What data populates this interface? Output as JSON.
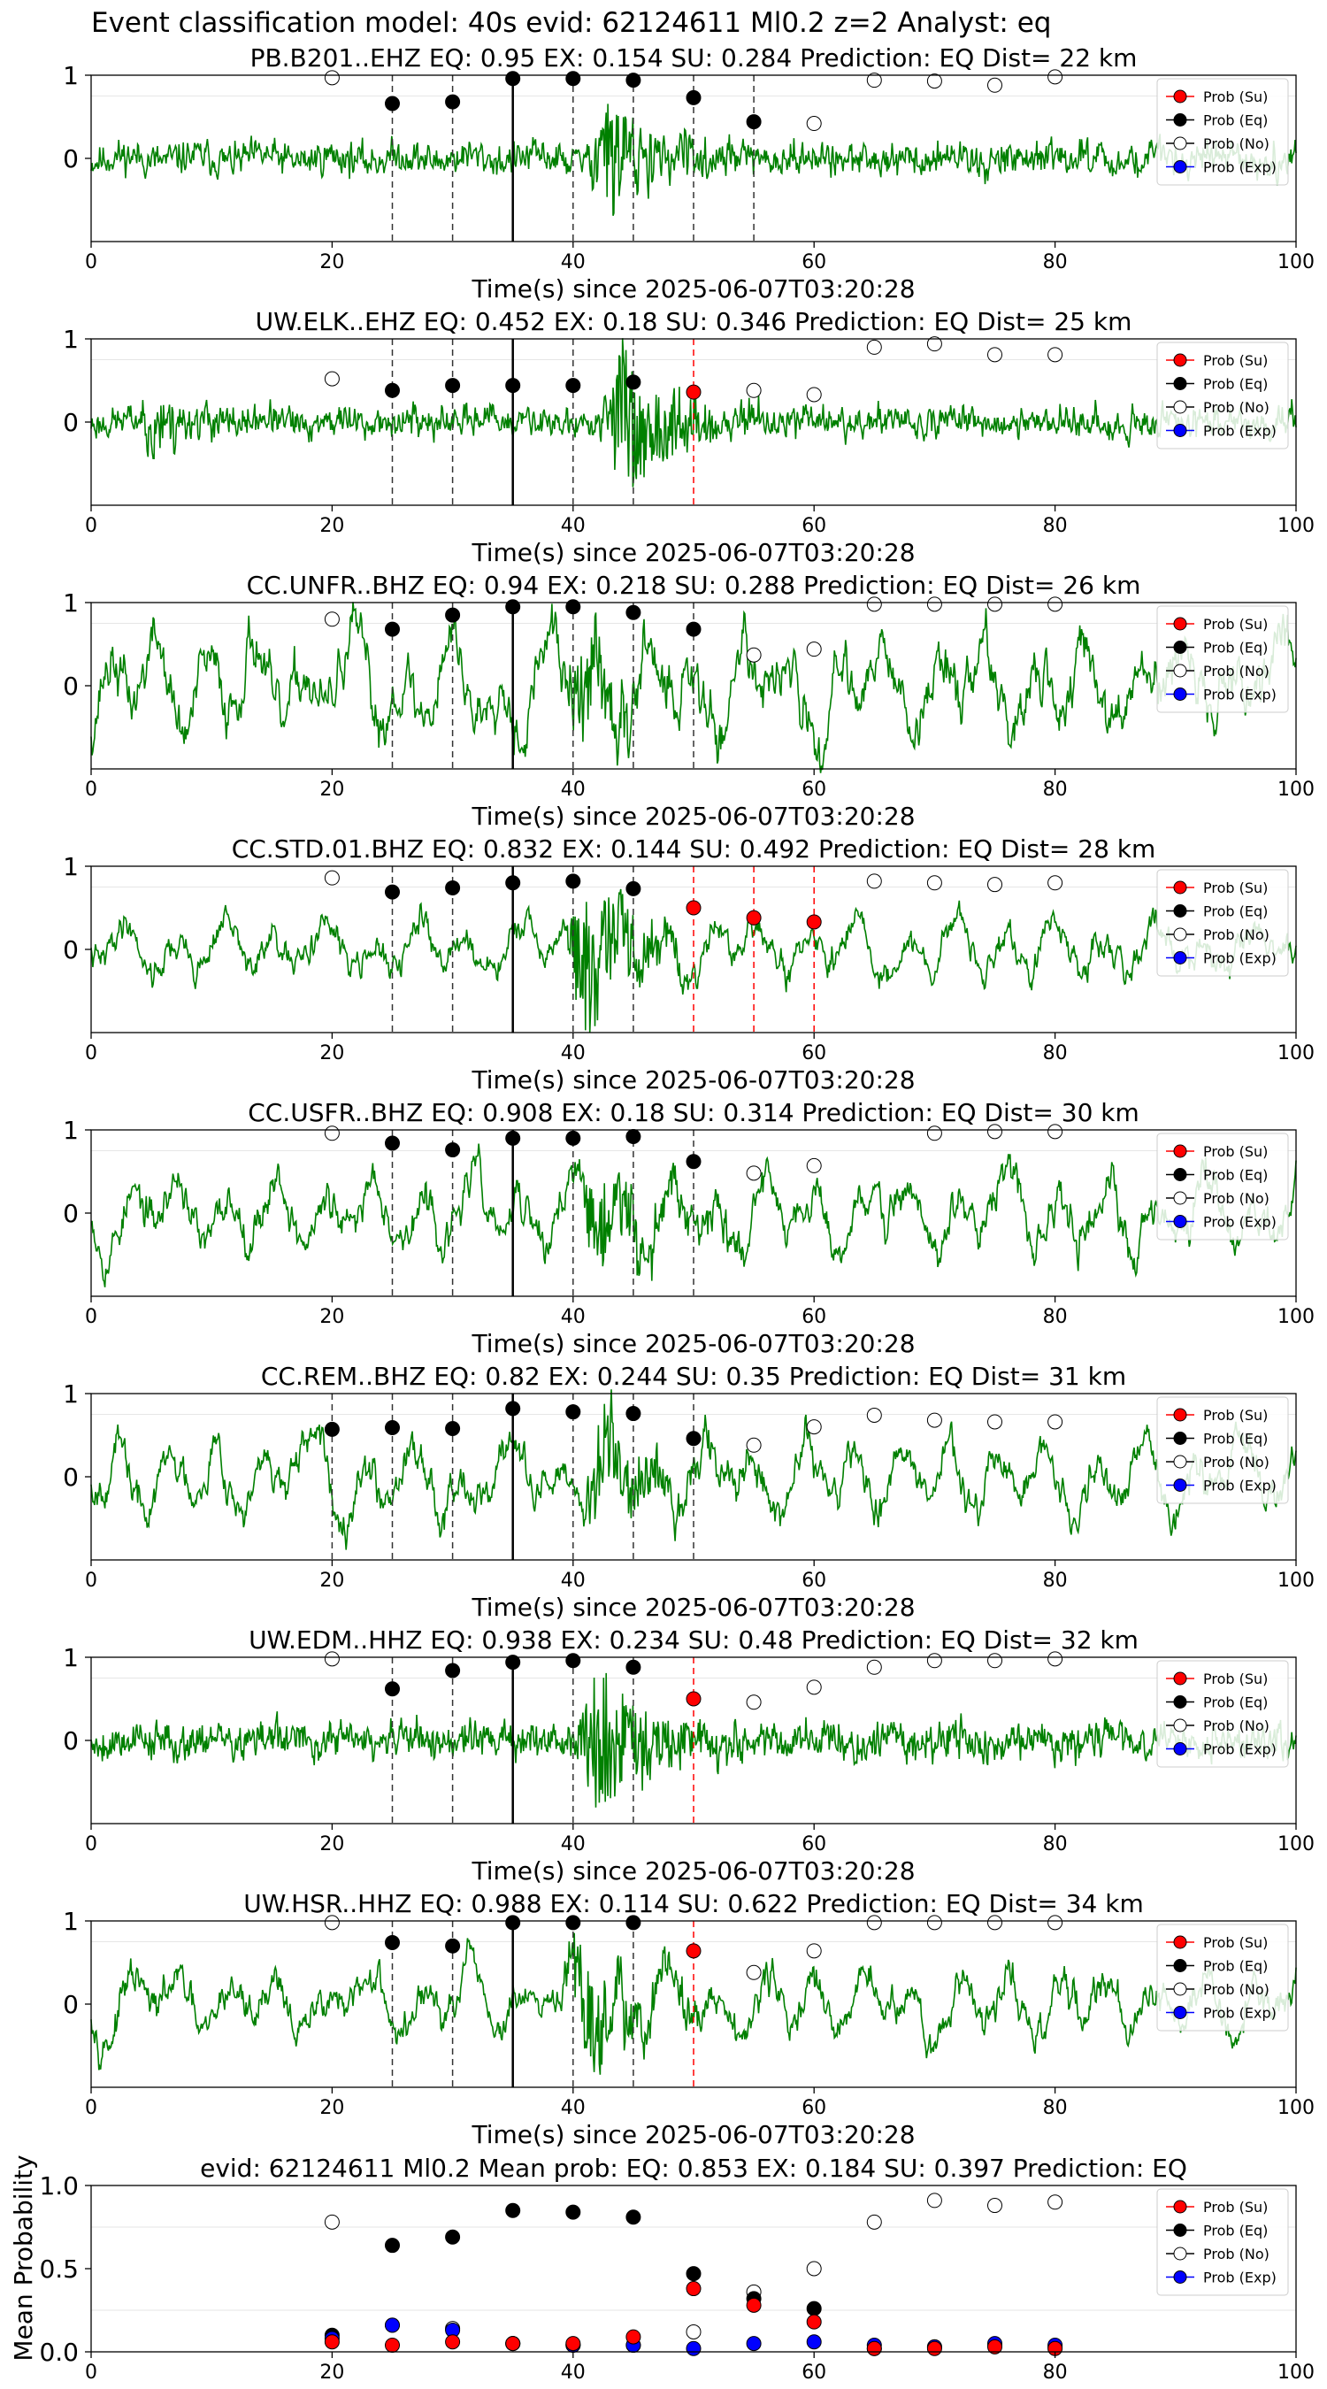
{
  "title": "Event classification model: 40s evid: 62124611 Ml0.2 z=2 Analyst: eq",
  "legend": [
    "Prob (Su)",
    "Prob (Eq)",
    "Prob (No)",
    "Prob (Exp)"
  ],
  "colors": {
    "waveform": "#008000",
    "su": "#ff0000",
    "eq": "#000000",
    "no": "#ffffff",
    "exp": "#0000ff",
    "line_eq": "#000000",
    "line_su": "#ff0000"
  },
  "chart_data": [
    {
      "type": "line",
      "title": "PB.B201..EHZ   EQ: 0.95  EX: 0.154  SU: 0.284   Prediction: EQ    Dist= 22 km",
      "xlabel": "Time(s) since 2025-06-07T03:20:28",
      "xlim": [
        0,
        100
      ],
      "ylim": [
        -1,
        1
      ],
      "xticks": [
        "0",
        "20",
        "40",
        "60",
        "80",
        "100"
      ],
      "yticks": [
        "0",
        "1"
      ],
      "points": [
        {
          "x": 20,
          "y": 0.97,
          "cls": "no"
        },
        {
          "x": 25,
          "y": 0.66,
          "cls": "eq"
        },
        {
          "x": 30,
          "y": 0.68,
          "cls": "eq"
        },
        {
          "x": 35,
          "y": 0.96,
          "cls": "eq"
        },
        {
          "x": 40,
          "y": 0.96,
          "cls": "eq"
        },
        {
          "x": 45,
          "y": 0.94,
          "cls": "eq"
        },
        {
          "x": 50,
          "y": 0.73,
          "cls": "eq"
        },
        {
          "x": 55,
          "y": 0.44,
          "cls": "eq"
        },
        {
          "x": 60,
          "y": 0.42,
          "cls": "no"
        },
        {
          "x": 65,
          "y": 0.94,
          "cls": "no"
        },
        {
          "x": 70,
          "y": 0.93,
          "cls": "no"
        },
        {
          "x": 75,
          "y": 0.88,
          "cls": "no"
        },
        {
          "x": 80,
          "y": 0.98,
          "cls": "no"
        }
      ],
      "vlines": [
        {
          "x": 25,
          "c": "eq"
        },
        {
          "x": 30,
          "c": "eq"
        },
        {
          "x": 40,
          "c": "eq"
        },
        {
          "x": 45,
          "c": "eq"
        },
        {
          "x": 50,
          "c": "eq"
        },
        {
          "x": 55,
          "c": "eq"
        }
      ],
      "waveform": {
        "style": "noisy",
        "amp": 0.22,
        "event_t": 43,
        "event_amp": 0.7,
        "seed": 11
      }
    },
    {
      "type": "line",
      "title": "UW.ELK..EHZ   EQ: 0.452  EX: 0.18  SU: 0.346   Prediction: EQ    Dist= 25 km",
      "xlabel": "Time(s) since 2025-06-07T03:20:28",
      "xlim": [
        0,
        100
      ],
      "ylim": [
        -1,
        1
      ],
      "xticks": [
        "0",
        "20",
        "40",
        "60",
        "80",
        "100"
      ],
      "yticks": [
        "0",
        "1"
      ],
      "points": [
        {
          "x": 20,
          "y": 0.52,
          "cls": "no"
        },
        {
          "x": 25,
          "y": 0.38,
          "cls": "eq"
        },
        {
          "x": 30,
          "y": 0.44,
          "cls": "eq"
        },
        {
          "x": 35,
          "y": 0.44,
          "cls": "eq"
        },
        {
          "x": 40,
          "y": 0.44,
          "cls": "eq"
        },
        {
          "x": 45,
          "y": 0.48,
          "cls": "eq"
        },
        {
          "x": 50,
          "y": 0.36,
          "cls": "su"
        },
        {
          "x": 55,
          "y": 0.38,
          "cls": "no"
        },
        {
          "x": 60,
          "y": 0.33,
          "cls": "no"
        },
        {
          "x": 65,
          "y": 0.9,
          "cls": "no"
        },
        {
          "x": 70,
          "y": 0.94,
          "cls": "no"
        },
        {
          "x": 75,
          "y": 0.81,
          "cls": "no"
        },
        {
          "x": 80,
          "y": 0.81,
          "cls": "no"
        }
      ],
      "vlines": [
        {
          "x": 25,
          "c": "eq"
        },
        {
          "x": 30,
          "c": "eq"
        },
        {
          "x": 40,
          "c": "eq"
        },
        {
          "x": 45,
          "c": "eq"
        },
        {
          "x": 50,
          "c": "su"
        }
      ],
      "waveform": {
        "style": "noisy",
        "amp": 0.2,
        "event_t": 44,
        "event_amp": 0.95,
        "seed": 23,
        "early_t": 5,
        "early_amp": 0.45
      }
    },
    {
      "type": "line",
      "title": "CC.UNFR..BHZ   EQ: 0.94  EX: 0.218  SU: 0.288   Prediction: EQ    Dist= 26 km",
      "xlabel": "Time(s) since 2025-06-07T03:20:28",
      "xlim": [
        0,
        100
      ],
      "ylim": [
        -1,
        1
      ],
      "xticks": [
        "0",
        "20",
        "40",
        "60",
        "80",
        "100"
      ],
      "yticks": [
        "0",
        "1"
      ],
      "points": [
        {
          "x": 20,
          "y": 0.8,
          "cls": "no"
        },
        {
          "x": 25,
          "y": 0.68,
          "cls": "eq"
        },
        {
          "x": 30,
          "y": 0.85,
          "cls": "eq"
        },
        {
          "x": 35,
          "y": 0.95,
          "cls": "eq"
        },
        {
          "x": 40,
          "y": 0.95,
          "cls": "eq"
        },
        {
          "x": 45,
          "y": 0.88,
          "cls": "eq"
        },
        {
          "x": 50,
          "y": 0.68,
          "cls": "eq"
        },
        {
          "x": 55,
          "y": 0.37,
          "cls": "no"
        },
        {
          "x": 60,
          "y": 0.44,
          "cls": "no"
        },
        {
          "x": 65,
          "y": 0.98,
          "cls": "no"
        },
        {
          "x": 70,
          "y": 0.98,
          "cls": "no"
        },
        {
          "x": 75,
          "y": 0.98,
          "cls": "no"
        },
        {
          "x": 80,
          "y": 0.98,
          "cls": "no"
        }
      ],
      "vlines": [
        {
          "x": 25,
          "c": "eq"
        },
        {
          "x": 30,
          "c": "eq"
        },
        {
          "x": 40,
          "c": "eq"
        },
        {
          "x": 45,
          "c": "eq"
        },
        {
          "x": 50,
          "c": "eq"
        }
      ],
      "waveform": {
        "style": "wavy",
        "amp": 0.45,
        "event_t": 41,
        "event_amp": 0.6,
        "seed": 37
      }
    },
    {
      "type": "line",
      "title": "CC.STD.01.BHZ   EQ: 0.832  EX: 0.144  SU: 0.492   Prediction: EQ    Dist= 28 km",
      "xlabel": "Time(s) since 2025-06-07T03:20:28",
      "xlim": [
        0,
        100
      ],
      "ylim": [
        -1,
        1
      ],
      "xticks": [
        "0",
        "20",
        "40",
        "60",
        "80",
        "100"
      ],
      "yticks": [
        "0",
        "1"
      ],
      "points": [
        {
          "x": 20,
          "y": 0.86,
          "cls": "no"
        },
        {
          "x": 25,
          "y": 0.69,
          "cls": "eq"
        },
        {
          "x": 30,
          "y": 0.74,
          "cls": "eq"
        },
        {
          "x": 35,
          "y": 0.8,
          "cls": "eq"
        },
        {
          "x": 40,
          "y": 0.82,
          "cls": "eq"
        },
        {
          "x": 45,
          "y": 0.73,
          "cls": "eq"
        },
        {
          "x": 50,
          "y": 0.5,
          "cls": "su"
        },
        {
          "x": 55,
          "y": 0.38,
          "cls": "su"
        },
        {
          "x": 60,
          "y": 0.33,
          "cls": "su"
        },
        {
          "x": 65,
          "y": 0.82,
          "cls": "no"
        },
        {
          "x": 70,
          "y": 0.8,
          "cls": "no"
        },
        {
          "x": 75,
          "y": 0.78,
          "cls": "no"
        },
        {
          "x": 80,
          "y": 0.8,
          "cls": "no"
        }
      ],
      "vlines": [
        {
          "x": 25,
          "c": "eq"
        },
        {
          "x": 30,
          "c": "eq"
        },
        {
          "x": 40,
          "c": "eq"
        },
        {
          "x": 45,
          "c": "eq"
        },
        {
          "x": 50,
          "c": "su"
        },
        {
          "x": 55,
          "c": "su"
        },
        {
          "x": 60,
          "c": "su"
        }
      ],
      "waveform": {
        "style": "wavy",
        "amp": 0.25,
        "event_t": 41,
        "event_amp": 0.8,
        "seed": 41
      }
    },
    {
      "type": "line",
      "title": "CC.USFR..BHZ   EQ: 0.908  EX: 0.18  SU: 0.314   Prediction: EQ    Dist= 30 km",
      "xlabel": "Time(s) since 2025-06-07T03:20:28",
      "xlim": [
        0,
        100
      ],
      "ylim": [
        -1,
        1
      ],
      "xticks": [
        "0",
        "20",
        "40",
        "60",
        "80",
        "100"
      ],
      "yticks": [
        "0",
        "1"
      ],
      "points": [
        {
          "x": 20,
          "y": 0.96,
          "cls": "no"
        },
        {
          "x": 25,
          "y": 0.84,
          "cls": "eq"
        },
        {
          "x": 30,
          "y": 0.76,
          "cls": "eq"
        },
        {
          "x": 35,
          "y": 0.9,
          "cls": "eq"
        },
        {
          "x": 40,
          "y": 0.9,
          "cls": "eq"
        },
        {
          "x": 45,
          "y": 0.92,
          "cls": "eq"
        },
        {
          "x": 50,
          "y": 0.62,
          "cls": "eq"
        },
        {
          "x": 55,
          "y": 0.48,
          "cls": "no"
        },
        {
          "x": 60,
          "y": 0.57,
          "cls": "no"
        },
        {
          "x": 70,
          "y": 0.96,
          "cls": "no"
        },
        {
          "x": 75,
          "y": 0.98,
          "cls": "no"
        },
        {
          "x": 80,
          "y": 0.98,
          "cls": "no"
        }
      ],
      "vlines": [
        {
          "x": 25,
          "c": "eq"
        },
        {
          "x": 30,
          "c": "eq"
        },
        {
          "x": 40,
          "c": "eq"
        },
        {
          "x": 45,
          "c": "eq"
        },
        {
          "x": 50,
          "c": "eq"
        }
      ],
      "waveform": {
        "style": "wavy",
        "amp": 0.33,
        "event_t": 42,
        "event_amp": 0.6,
        "seed": 53
      }
    },
    {
      "type": "line",
      "title": "CC.REM..BHZ   EQ: 0.82  EX: 0.244  SU: 0.35   Prediction: EQ    Dist= 31 km",
      "xlabel": "Time(s) since 2025-06-07T03:20:28",
      "xlim": [
        0,
        100
      ],
      "ylim": [
        -1,
        1
      ],
      "xticks": [
        "0",
        "20",
        "40",
        "60",
        "80",
        "100"
      ],
      "yticks": [
        "0",
        "1"
      ],
      "points": [
        {
          "x": 20,
          "y": 0.57,
          "cls": "eq"
        },
        {
          "x": 25,
          "y": 0.59,
          "cls": "eq"
        },
        {
          "x": 30,
          "y": 0.58,
          "cls": "eq"
        },
        {
          "x": 35,
          "y": 0.82,
          "cls": "eq"
        },
        {
          "x": 40,
          "y": 0.78,
          "cls": "eq"
        },
        {
          "x": 45,
          "y": 0.76,
          "cls": "eq"
        },
        {
          "x": 50,
          "y": 0.46,
          "cls": "eq"
        },
        {
          "x": 55,
          "y": 0.38,
          "cls": "no"
        },
        {
          "x": 60,
          "y": 0.6,
          "cls": "no"
        },
        {
          "x": 65,
          "y": 0.74,
          "cls": "no"
        },
        {
          "x": 70,
          "y": 0.68,
          "cls": "no"
        },
        {
          "x": 75,
          "y": 0.66,
          "cls": "no"
        },
        {
          "x": 80,
          "y": 0.66,
          "cls": "no"
        }
      ],
      "vlines": [
        {
          "x": 20,
          "c": "eq"
        },
        {
          "x": 25,
          "c": "eq"
        },
        {
          "x": 30,
          "c": "eq"
        },
        {
          "x": 40,
          "c": "eq"
        },
        {
          "x": 45,
          "c": "eq"
        },
        {
          "x": 50,
          "c": "eq"
        }
      ],
      "waveform": {
        "style": "wavy",
        "amp": 0.32,
        "event_t": 42,
        "event_amp": 0.65,
        "seed": 67
      }
    },
    {
      "type": "line",
      "title": "UW.EDM..HHZ   EQ: 0.938  EX: 0.234  SU: 0.48   Prediction: EQ    Dist= 32 km",
      "xlabel": "Time(s) since 2025-06-07T03:20:28",
      "xlim": [
        0,
        100
      ],
      "ylim": [
        -1,
        1
      ],
      "xticks": [
        "0",
        "20",
        "40",
        "60",
        "80",
        "100"
      ],
      "yticks": [
        "0",
        "1"
      ],
      "points": [
        {
          "x": 20,
          "y": 0.98,
          "cls": "no"
        },
        {
          "x": 25,
          "y": 0.62,
          "cls": "eq"
        },
        {
          "x": 30,
          "y": 0.84,
          "cls": "eq"
        },
        {
          "x": 35,
          "y": 0.94,
          "cls": "eq"
        },
        {
          "x": 40,
          "y": 0.96,
          "cls": "eq"
        },
        {
          "x": 45,
          "y": 0.88,
          "cls": "eq"
        },
        {
          "x": 50,
          "y": 0.5,
          "cls": "su"
        },
        {
          "x": 55,
          "y": 0.46,
          "cls": "no"
        },
        {
          "x": 60,
          "y": 0.64,
          "cls": "no"
        },
        {
          "x": 65,
          "y": 0.88,
          "cls": "no"
        },
        {
          "x": 70,
          "y": 0.96,
          "cls": "no"
        },
        {
          "x": 75,
          "y": 0.96,
          "cls": "no"
        },
        {
          "x": 80,
          "y": 0.98,
          "cls": "no"
        }
      ],
      "vlines": [
        {
          "x": 25,
          "c": "eq"
        },
        {
          "x": 30,
          "c": "eq"
        },
        {
          "x": 40,
          "c": "eq"
        },
        {
          "x": 45,
          "c": "eq"
        },
        {
          "x": 50,
          "c": "su"
        }
      ],
      "waveform": {
        "style": "noisy",
        "amp": 0.25,
        "event_t": 42,
        "event_amp": 0.9,
        "seed": 79
      }
    },
    {
      "type": "line",
      "title": "UW.HSR..HHZ   EQ: 0.988  EX: 0.114  SU: 0.622   Prediction: EQ    Dist= 34 km",
      "xlabel": "Time(s) since 2025-06-07T03:20:28",
      "xlim": [
        0,
        100
      ],
      "ylim": [
        -1,
        1
      ],
      "xticks": [
        "0",
        "20",
        "40",
        "60",
        "80",
        "100"
      ],
      "yticks": [
        "0",
        "1"
      ],
      "points": [
        {
          "x": 20,
          "y": 0.98,
          "cls": "no"
        },
        {
          "x": 25,
          "y": 0.74,
          "cls": "eq"
        },
        {
          "x": 30,
          "y": 0.7,
          "cls": "eq"
        },
        {
          "x": 35,
          "y": 0.98,
          "cls": "eq"
        },
        {
          "x": 40,
          "y": 0.98,
          "cls": "eq"
        },
        {
          "x": 45,
          "y": 0.98,
          "cls": "eq"
        },
        {
          "x": 50,
          "y": 0.64,
          "cls": "su"
        },
        {
          "x": 55,
          "y": 0.38,
          "cls": "no"
        },
        {
          "x": 60,
          "y": 0.64,
          "cls": "no"
        },
        {
          "x": 65,
          "y": 0.98,
          "cls": "no"
        },
        {
          "x": 70,
          "y": 0.98,
          "cls": "no"
        },
        {
          "x": 75,
          "y": 0.98,
          "cls": "no"
        },
        {
          "x": 80,
          "y": 0.98,
          "cls": "no"
        }
      ],
      "vlines": [
        {
          "x": 25,
          "c": "eq"
        },
        {
          "x": 30,
          "c": "eq"
        },
        {
          "x": 40,
          "c": "eq"
        },
        {
          "x": 45,
          "c": "eq"
        },
        {
          "x": 50,
          "c": "su"
        }
      ],
      "waveform": {
        "style": "wavy",
        "amp": 0.3,
        "event_t": 41,
        "event_amp": 0.7,
        "seed": 97
      }
    },
    {
      "type": "scatter",
      "title": "evid: 62124611  Ml0.2   Mean prob:   EQ: 0.853  EX: 0.184  SU: 0.397   Prediction: EQ",
      "ylabel": "Mean Probability",
      "xlim": [
        0,
        100
      ],
      "ylim": [
        0,
        1
      ],
      "xticks": [
        "0",
        "20",
        "40",
        "60",
        "80",
        "100"
      ],
      "yticks": [
        "0.0",
        "0.5",
        "1.0"
      ],
      "x": [
        20,
        25,
        30,
        35,
        40,
        45,
        50,
        55,
        60,
        65,
        70,
        75,
        80
      ],
      "series": [
        {
          "name": "Prob (No)",
          "cls": "no",
          "values": [
            0.78,
            0.16,
            0.14,
            0.05,
            0.04,
            0.04,
            0.12,
            0.36,
            0.5,
            0.78,
            0.91,
            0.88,
            0.9
          ]
        },
        {
          "name": "Prob (Eq)",
          "cls": "eq",
          "values": [
            0.1,
            0.64,
            0.69,
            0.85,
            0.84,
            0.81,
            0.47,
            0.32,
            0.26,
            0.02,
            0.03,
            0.04,
            0.03
          ]
        },
        {
          "name": "Prob (Exp)",
          "cls": "exp",
          "values": [
            0.08,
            0.16,
            0.13,
            0.05,
            0.04,
            0.04,
            0.02,
            0.05,
            0.06,
            0.04,
            0.03,
            0.05,
            0.04
          ]
        },
        {
          "name": "Prob (Su)",
          "cls": "su",
          "values": [
            0.06,
            0.04,
            0.06,
            0.05,
            0.05,
            0.09,
            0.38,
            0.28,
            0.18,
            0.02,
            0.02,
            0.03,
            0.02
          ]
        }
      ]
    }
  ]
}
